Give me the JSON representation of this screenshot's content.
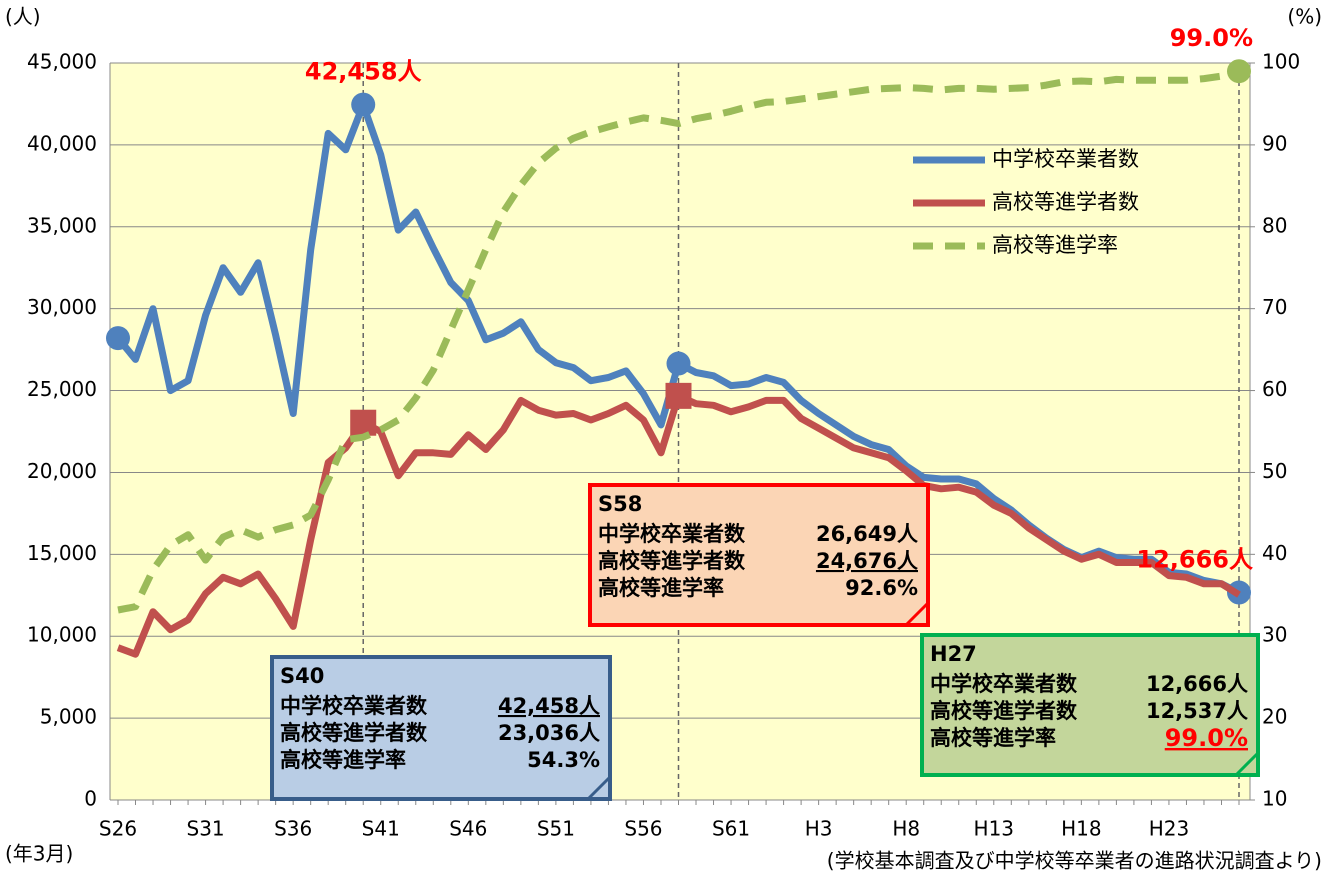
{
  "chart_data": {
    "type": "line",
    "y_unit": "(人)",
    "y2_unit": "(%)",
    "x_unit": "(年3月)",
    "source": "(学校基本調査及び中学校等卒業者の進路状況調査より)",
    "categories": [
      "S26",
      null,
      null,
      null,
      null,
      "S31",
      null,
      null,
      null,
      null,
      "S36",
      null,
      null,
      null,
      null,
      "S41",
      null,
      null,
      null,
      null,
      "S46",
      null,
      null,
      null,
      null,
      "S51",
      null,
      null,
      null,
      null,
      "S56",
      null,
      null,
      null,
      null,
      "S61",
      null,
      null,
      null,
      null,
      "H3",
      null,
      null,
      null,
      null,
      "H8",
      null,
      null,
      null,
      null,
      "H13",
      null,
      null,
      null,
      null,
      "H18",
      null,
      null,
      null,
      null,
      "H23",
      null,
      null,
      null,
      null
    ],
    "ylim": [
      0,
      45000
    ],
    "yticks": [
      0,
      {
        "value": 5000,
        "label": "5,000"
      },
      {
        "value": 10000,
        "label": "10,000"
      },
      {
        "value": 15000,
        "label": "15,000"
      },
      {
        "value": 20000,
        "label": "20,000"
      },
      {
        "value": 25000,
        "label": "25,000"
      },
      {
        "value": 30000,
        "label": "30,000"
      },
      {
        "value": 35000,
        "label": "35,000"
      },
      {
        "value": 40000,
        "label": "40,000"
      },
      {
        "value": 45000,
        "label": "45,000"
      }
    ],
    "y2lim": [
      10,
      100
    ],
    "y2ticks": [
      10,
      20,
      30,
      40,
      50,
      60,
      70,
      80,
      90,
      100
    ],
    "grid": true,
    "background": "#ffffcc",
    "reference_lines": [
      14,
      32,
      64
    ],
    "series": [
      {
        "name": "中学校卒業者数",
        "color": "#4f81bd",
        "dash": false,
        "markers": [
          0,
          14,
          32,
          64
        ],
        "marker_shape": "circle",
        "values": [
          28200,
          26900,
          30000,
          25000,
          25600,
          29600,
          32500,
          31000,
          32800,
          28400,
          23600,
          33600,
          40700,
          39700,
          42458,
          39400,
          34800,
          35900,
          33700,
          31600,
          30500,
          28100,
          28500,
          29200,
          27500,
          26700,
          26400,
          25600,
          25800,
          26200,
          24800,
          22900,
          26649,
          26100,
          25900,
          25300,
          25400,
          25800,
          25500,
          24400,
          23600,
          22900,
          22200,
          21700,
          21400,
          20400,
          19700,
          19600,
          19600,
          19300,
          18400,
          17700,
          16800,
          16000,
          15300,
          14800,
          15200,
          14800,
          14700,
          14700,
          13900,
          13800,
          13400,
          13200,
          12666
        ]
      },
      {
        "name": "高校等進学者数",
        "color": "#c0504d",
        "dash": false,
        "markers": [
          14,
          32
        ],
        "marker_shape": "square",
        "values": [
          9300,
          8900,
          11500,
          10400,
          11000,
          12600,
          13600,
          13200,
          13800,
          12300,
          10600,
          15900,
          20600,
          21500,
          23036,
          22500,
          19800,
          21200,
          21200,
          21100,
          22300,
          21400,
          22600,
          24400,
          23800,
          23500,
          23600,
          23200,
          23600,
          24100,
          23200,
          21200,
          24676,
          24200,
          24100,
          23700,
          24000,
          24400,
          24400,
          23300,
          22700,
          22100,
          21500,
          21200,
          20900,
          20100,
          19200,
          19000,
          19100,
          18800,
          18000,
          17500,
          16600,
          15900,
          15200,
          14700,
          15000,
          14500,
          14500,
          14500,
          13700,
          13600,
          13200,
          13200,
          12537
        ]
      },
      {
        "name": "高校等進学率",
        "color": "#9bbb59",
        "dash": true,
        "axis": "y2",
        "markers": [
          64
        ],
        "marker_shape": "circle",
        "values": [
          33.2,
          33.6,
          38.1,
          41.1,
          42.4,
          39.3,
          42.1,
          43.0,
          42.1,
          43.0,
          43.6,
          44.8,
          49.1,
          54.0,
          54.3,
          55.2,
          56.4,
          59.1,
          62.5,
          67.4,
          72.3,
          77.2,
          81.8,
          85.1,
          87.8,
          89.6,
          90.8,
          91.6,
          92.2,
          92.8,
          93.3,
          93.0,
          92.6,
          93.2,
          93.6,
          94.1,
          94.7,
          95.2,
          95.3,
          95.6,
          95.9,
          96.2,
          96.5,
          96.8,
          96.9,
          97.0,
          96.9,
          96.7,
          96.9,
          96.9,
          96.8,
          96.9,
          97.0,
          97.3,
          97.7,
          97.8,
          97.7,
          98.0,
          97.9,
          97.9,
          97.9,
          97.9,
          98.1,
          98.4,
          99.0
        ]
      }
    ],
    "point_labels": [
      {
        "series": 0,
        "index": 14,
        "text": "42,458人"
      },
      {
        "series": 0,
        "index": 64,
        "text": "12,666人"
      },
      {
        "series": 2,
        "index": 64,
        "text": "99.0%"
      }
    ],
    "callouts": [
      {
        "title": "S40",
        "fill": "#b9cde5",
        "border": "#385d8a",
        "rows": [
          [
            "中学校卒業者数",
            "42,458人"
          ],
          [
            "高校等進学者数",
            "23,036人"
          ],
          [
            "高校等進学率",
            "54.3%"
          ]
        ]
      },
      {
        "title": "S58",
        "fill": "#fbd5b5",
        "border": "#ff0000",
        "rows": [
          [
            "中学校卒業者数",
            "26,649人"
          ],
          [
            "高校等進学者数",
            "24,676人"
          ],
          [
            "高校等進学率",
            "92.6%"
          ]
        ]
      },
      {
        "title": "H27",
        "fill": "#c3d69b",
        "border": "#00b050",
        "rows": [
          [
            "中学校卒業者数",
            "12,666人"
          ],
          [
            "高校等進学者数",
            "12,537人"
          ],
          [
            "高校等進学率",
            "99.0%"
          ]
        ]
      }
    ]
  }
}
